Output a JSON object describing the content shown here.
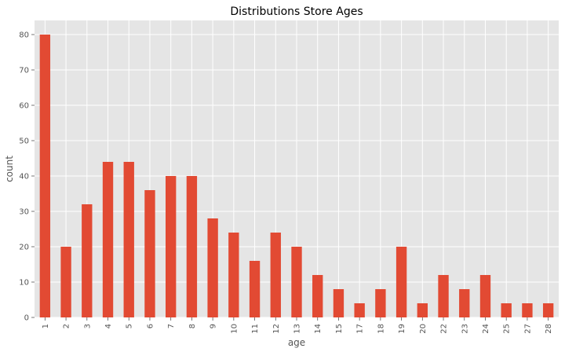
{
  "chart_data": {
    "type": "bar",
    "title": "Distributions Store Ages",
    "xlabel": "age",
    "ylabel": "count",
    "categories": [
      "1",
      "2",
      "3",
      "4",
      "5",
      "6",
      "7",
      "8",
      "9",
      "10",
      "11",
      "12",
      "13",
      "14",
      "15",
      "17",
      "18",
      "19",
      "20",
      "22",
      "23",
      "24",
      "25",
      "27",
      "28"
    ],
    "values": [
      80,
      20,
      32,
      44,
      44,
      36,
      40,
      40,
      28,
      24,
      16,
      24,
      20,
      12,
      8,
      4,
      8,
      20,
      4,
      12,
      8,
      12,
      4,
      4,
      4
    ],
    "ylim": [
      0,
      84
    ],
    "yticks": [
      0,
      10,
      20,
      30,
      40,
      50,
      60,
      70,
      80
    ],
    "grid": true,
    "legend": "none",
    "colors": {
      "bar": "#e24a33",
      "plot_background": "#e5e5e5",
      "grid": "#ffffff"
    }
  }
}
